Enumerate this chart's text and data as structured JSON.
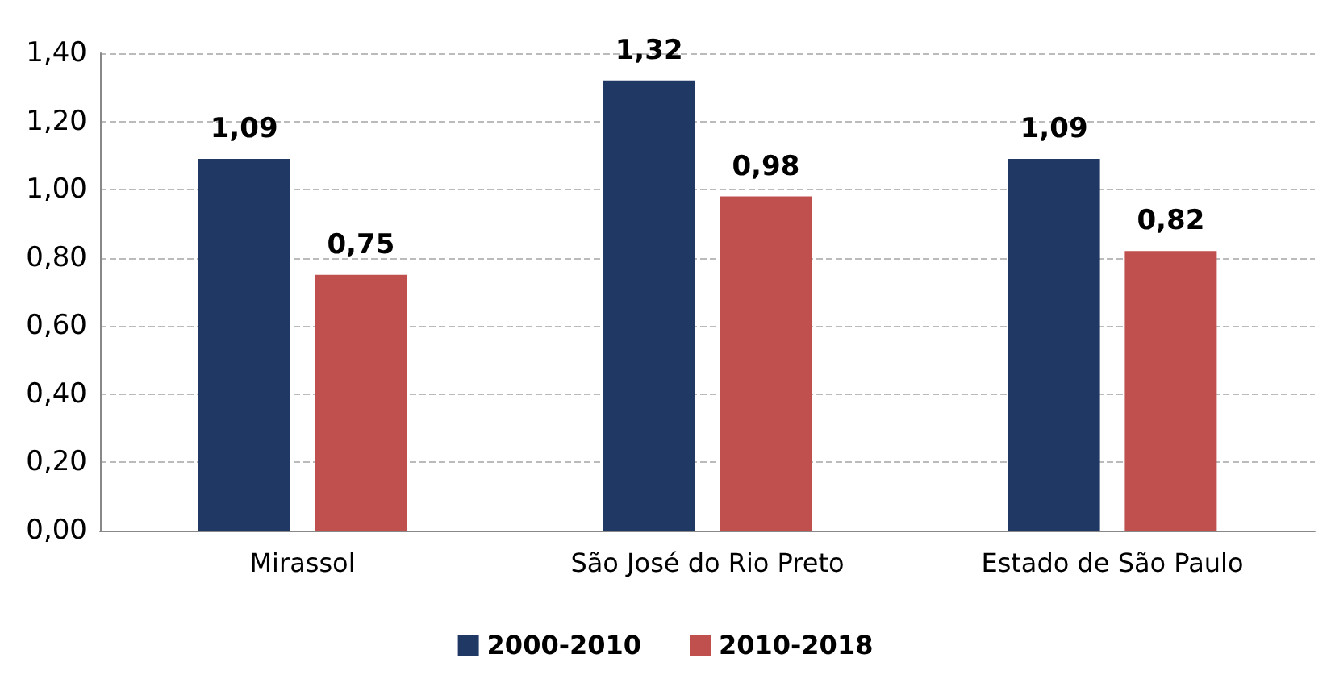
{
  "chart_data": {
    "type": "bar",
    "categories": [
      "Mirassol",
      "São José do Rio Preto",
      "Estado de São Paulo"
    ],
    "series": [
      {
        "name": "2000-2010",
        "color": "#1f3864",
        "values": [
          1.09,
          1.32,
          1.09
        ],
        "value_labels": [
          "1,09",
          "1,32",
          "1,09"
        ]
      },
      {
        "name": "2010-2018",
        "color": "#c0504d",
        "values": [
          0.75,
          0.98,
          0.82
        ],
        "value_labels": [
          "0,75",
          "0,98",
          "0,82"
        ]
      }
    ],
    "ylim": [
      0,
      1.4
    ],
    "yticks": [
      {
        "value": 0,
        "label": "0,00"
      },
      {
        "value": 0.2,
        "label": "0,20"
      },
      {
        "value": 0.4,
        "label": "0,40"
      },
      {
        "value": 0.6,
        "label": "0,60"
      },
      {
        "value": 0.8,
        "label": "0,80"
      },
      {
        "value": 1,
        "label": "1,00"
      },
      {
        "value": 1.2,
        "label": "1,20"
      },
      {
        "value": 1.4,
        "label": "1,40"
      }
    ],
    "grid": "y",
    "legend": "bottom"
  }
}
